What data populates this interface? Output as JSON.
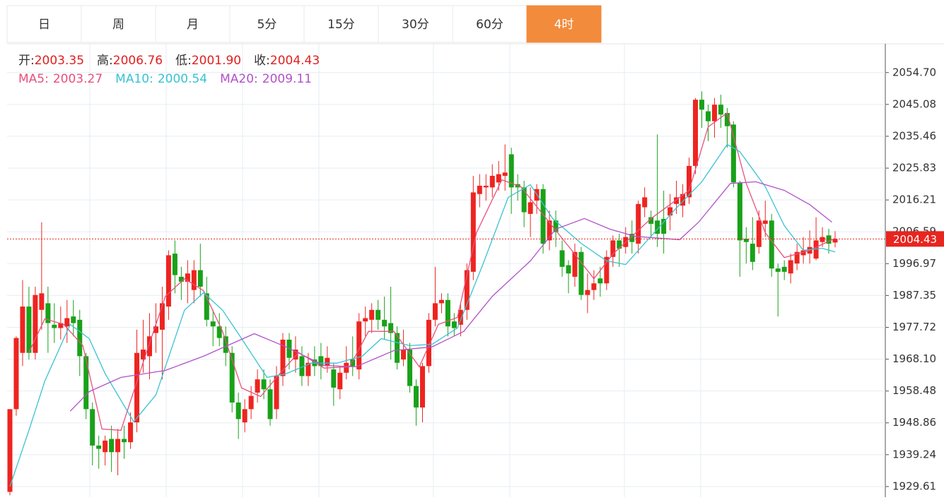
{
  "tabs": [
    "日",
    "周",
    "月",
    "5分",
    "15分",
    "30分",
    "60分",
    "4时"
  ],
  "active_tab": 7,
  "chart_data": {
    "type": "candlestick",
    "ohlc_legend": [
      {
        "label": "开:",
        "value": "2003.35"
      },
      {
        "label": "高:",
        "value": "2006.76"
      },
      {
        "label": "低:",
        "value": "2001.90"
      },
      {
        "label": "收:",
        "value": "2004.43"
      }
    ],
    "up_color": "#ee2420",
    "down_color": "#19a119",
    "open": [
      1928,
      1953,
      1970,
      1984,
      1970,
      1983,
      1985,
      1978.5,
      1977.5,
      1978,
      1981,
      1980,
      1969,
      1953,
      1942,
      1940,
      1944,
      1940,
      1944,
      1943,
      1949,
      1968,
      1969,
      1976,
      1977,
      1984,
      2000,
      1993,
      1991.5,
      1989,
      1995,
      1988,
      1979.5,
      1978,
      1975,
      1970,
      1955,
      1949,
      1953,
      1958,
      1962,
      1959,
      1953,
      1963,
      1974,
      1968,
      1969,
      1963,
      1968,
      1969,
      1966,
      1965,
      1959,
      1964,
      1968,
      1965,
      1979.5,
      1980,
      1983,
      1980,
      1979,
      1976,
      1968,
      1971,
      1960,
      1953.5,
      1966,
      1980,
      1985,
      1986,
      1979.5,
      1978.5,
      1983,
      1994.5,
      2018,
      2020,
      2020,
      2021.5,
      2023.5,
      2030,
      2021,
      2020,
      2012,
      2016,
      2019.5,
      2004,
      2010,
      2001,
      1996.5,
      1993,
      2000.5,
      1987.5,
      1989,
      1992.5,
      1991,
      1999,
      2004,
      2002,
      2006,
      2003,
      2014,
      2011,
      2010,
      2010.5,
      2011.5,
      2015,
      2014.5,
      2017,
      2026.5,
      2046.5,
      2043,
      2040,
      2045,
      2042.5,
      2039,
      2021.5,
      2004.5,
      2003,
      2002,
      2009,
      2010,
      1995.5,
      1996,
      1994,
      1997,
      1999.5,
      2000,
      1998.5,
      2003.5,
      2005.5,
      2003.35
    ],
    "high": [
      1953,
      1975,
      1992,
      1990,
      1990,
      2009.5,
      1990,
      1985,
      1984,
      1986,
      1986,
      1983,
      1970,
      1955,
      1945,
      1945,
      1948,
      1947,
      1948,
      1952,
      1977,
      1980,
      1982,
      1985,
      1990,
      2001,
      2004,
      1996,
      1998,
      1998,
      2003,
      1993,
      1983,
      1982,
      1978,
      1972,
      1958,
      1956,
      1960,
      1965,
      1965,
      1962,
      1966,
      1976,
      1976,
      1975,
      1972,
      1970,
      1972,
      1973,
      1972,
      1967,
      1966,
      1972,
      1975,
      1982,
      1984,
      1985,
      1986,
      1987,
      1990,
      1978,
      1977,
      1973,
      1962,
      1967,
      1982,
      1996,
      1988,
      1988,
      1982,
      1985,
      1997,
      2023.5,
      2024,
      2024,
      2027,
      2028,
      2033,
      2032,
      2024,
      2022,
      2020,
      2021,
      2021,
      2013,
      2013,
      2004,
      1998,
      2003,
      2002,
      1994,
      1995,
      1996,
      2001,
      2005.5,
      2006,
      2008,
      2010,
      2016,
      2020,
      2013,
      2036,
      2019,
      2018,
      2022,
      2021,
      2029,
      2047,
      2049,
      2045,
      2047,
      2048,
      2044,
      2040,
      2022,
      2008,
      2011,
      2013,
      2016,
      2012,
      1997,
      1998,
      2000,
      2003,
      2005,
      2007,
      2011,
      2008,
      2007.5,
      2006.76
    ],
    "low": [
      1927,
      1951,
      1966,
      1968,
      1968,
      1977,
      1970,
      1973,
      1974,
      1973,
      1975,
      1963,
      1950,
      1936,
      1935,
      1936,
      1934,
      1933,
      1938,
      1941,
      1946,
      1964,
      1962,
      1970,
      1962,
      1980,
      1988,
      1986,
      1985,
      1985,
      1987,
      1978,
      1972,
      1972,
      1966,
      1952,
      1944,
      1946,
      1950,
      1955,
      1956,
      1948,
      1950,
      1960,
      1965,
      1964,
      1960,
      1960,
      1963,
      1962,
      1964,
      1954,
      1956,
      1962,
      1963,
      1962,
      1975,
      1976,
      1977,
      1974,
      1968,
      1965,
      1966,
      1958,
      1948,
      1949,
      1964,
      1978,
      1982,
      1975,
      1975,
      1975,
      1980,
      1992,
      2014,
      2016,
      2017,
      2019,
      2019,
      2012,
      2016,
      2008,
      2005,
      2012,
      2000,
      2001,
      2002,
      1993,
      1988,
      1990,
      1986,
      1982,
      1986,
      1987,
      1989,
      1996,
      1996,
      2000,
      2000,
      2000,
      2011,
      2005,
      2002,
      2000,
      2007,
      2012,
      2011,
      2015,
      2024,
      2038,
      2034,
      2035,
      2038,
      2032,
      2020,
      1993,
      1997,
      1995,
      2000,
      2005,
      1993,
      1981,
      1992,
      1991,
      1995,
      1997,
      1997,
      1998,
      2002,
      2000,
      2001.9
    ],
    "close": [
      1953,
      1974.5,
      1984,
      1970,
      1987.5,
      1988,
      1979,
      1977.5,
      1979,
      1980.5,
      1979,
      1969,
      1953,
      1942,
      1941,
      1943.5,
      1940,
      1944,
      1943,
      1949,
      1970,
      1971,
      1975,
      1978,
      1985,
      1999.5,
      1993.5,
      1991.5,
      1994,
      1995,
      1990,
      1980,
      1978,
      1974.5,
      1970,
      1955,
      1950,
      1953,
      1957,
      1962,
      1959,
      1950,
      1963,
      1974,
      1968.5,
      1971,
      1963,
      1967,
      1966,
      1966,
      1968.5,
      1959.5,
      1964,
      1967,
      1966,
      1979.5,
      1980.5,
      1983,
      1980,
      1978,
      1976,
      1967,
      1971,
      1960,
      1953.5,
      1966,
      1980,
      1985,
      1986,
      1978,
      1977.5,
      1983,
      1995,
      2018.5,
      2020.5,
      2020.5,
      2023.5,
      2024,
      2024.5,
      2020,
      2020,
      2012.5,
      2015.5,
      2019.5,
      2003,
      2010,
      2006.5,
      1996,
      1994,
      2000.5,
      1987.5,
      1989,
      1991,
      1991,
      1999,
      2004,
      2001.5,
      2005,
      2003.5,
      2015,
      2017,
      2009,
      2006,
      2006,
      2014,
      2017,
      2018,
      2026.5,
      2046.5,
      2043.5,
      2040,
      2045,
      2042,
      2038.5,
      2021.5,
      2004,
      2003.5,
      1997.5,
      2010,
      2010,
      1995.5,
      1994.5,
      1994.5,
      1998,
      2000.5,
      2001,
      2002,
      2004,
      2005,
      2003,
      2004.43
    ],
    "series": [
      {
        "name": "MA5:",
        "legend_value": 2003.27,
        "color": "#e8507c",
        "x": [
          3,
          5.5,
          8.5,
          11.5,
          14.5,
          17.5,
          21.5,
          24.5,
          27.5,
          30.5,
          33.5,
          36.5,
          39.5,
          42.5,
          45.5,
          49.5,
          53.5,
          56.5,
          60.5,
          64.5,
          67.5,
          70.5,
          73.5,
          77.5,
          80.5,
          84.5,
          88.5,
          92,
          95,
          98,
          101,
          104,
          107,
          110,
          113,
          116,
          119,
          122,
          126,
          130
        ],
        "values": [
          1970.1,
          1980.3,
          1978.6,
          1972.2,
          1947.0,
          1946.6,
          1970.1,
          1987.1,
          1992.4,
          1988.8,
          1976.5,
          1959.4,
          1956.8,
          1963.7,
          1970.1,
          1965.4,
          1965.8,
          1976.5,
          1976.5,
          1965.8,
          1978.6,
          1980.7,
          2006.3,
          2022.3,
          2020.2,
          2010.6,
          2001.0,
          1992.4,
          1999.9,
          2005.2,
          2010.6,
          2014.8,
          2019.1,
          2038.3,
          2042.5,
          2021.2,
          2006.3,
          1998.8,
          2001.0,
          2004.6
        ]
      },
      {
        "name": "MA10:",
        "legend_value": 2000.54,
        "color": "#39c2d2",
        "x": [
          0,
          3,
          5.5,
          9.5,
          12.5,
          15,
          19.5,
          23,
          27.5,
          30.5,
          33.5,
          36.5,
          40.5,
          43.5,
          47.5,
          51.5,
          55.5,
          58.5,
          63,
          66.5,
          70.5,
          74.5,
          78.5,
          82,
          85.5,
          90,
          94,
          97,
          100,
          105,
          109,
          113,
          115,
          119,
          122,
          125,
          128,
          130
        ],
        "values": [
          1929.6,
          1946.6,
          1961.5,
          1978.6,
          1974.3,
          1963.7,
          1949.2,
          1957.3,
          1982.9,
          1988.2,
          1982.9,
          1974.3,
          1962.6,
          1963.7,
          1966.9,
          1966.9,
          1969.0,
          1974.3,
          1972.2,
          1972.6,
          1977.5,
          1996.7,
          2017.0,
          2020.8,
          2010.6,
          2003.1,
          1997.8,
          1996.7,
          2003.1,
          2013.8,
          2021.7,
          2033.0,
          2030.8,
          2020.2,
          2008.4,
          2001.0,
          2001.6,
          2000.5
        ]
      },
      {
        "name": "MA20:",
        "legend_value": 2009.11,
        "color": "#b252c9",
        "x": [
          9.5,
          12.5,
          17.5,
          24.5,
          30.5,
          38.5,
          43.5,
          49.5,
          54.5,
          60.5,
          66.5,
          71.5,
          76,
          82,
          86,
          90.5,
          94.5,
          98.5,
          105.5,
          108.5,
          113.5,
          117.5,
          122,
          126,
          129.5
        ],
        "values": [
          1952.4,
          1958.3,
          1962.6,
          1964.7,
          1969.0,
          1975.8,
          1971.8,
          1966.2,
          1965.8,
          1970.7,
          1971.8,
          1976.5,
          1987.1,
          1997.8,
          2007.4,
          2010.6,
          2007.4,
          2005.2,
          2004.2,
          2009.5,
          2021.2,
          2021.7,
          2019.1,
          2014.8,
          2009.5
        ]
      }
    ],
    "ylim": [
      1926.4,
      2063.4
    ],
    "yticks": [
      {
        "value": 2054.7,
        "label": "2054.70"
      },
      2045.08,
      2035.46,
      2025.83,
      2016.21,
      2006.59,
      1996.97,
      1987.35,
      1977.72,
      {
        "value": 1968.1,
        "label": "1968.10"
      },
      1958.48,
      1948.86,
      1939.24,
      1929.61
    ],
    "grid": true,
    "last_price": 2004.43,
    "last_price_color": "#e8251f"
  }
}
